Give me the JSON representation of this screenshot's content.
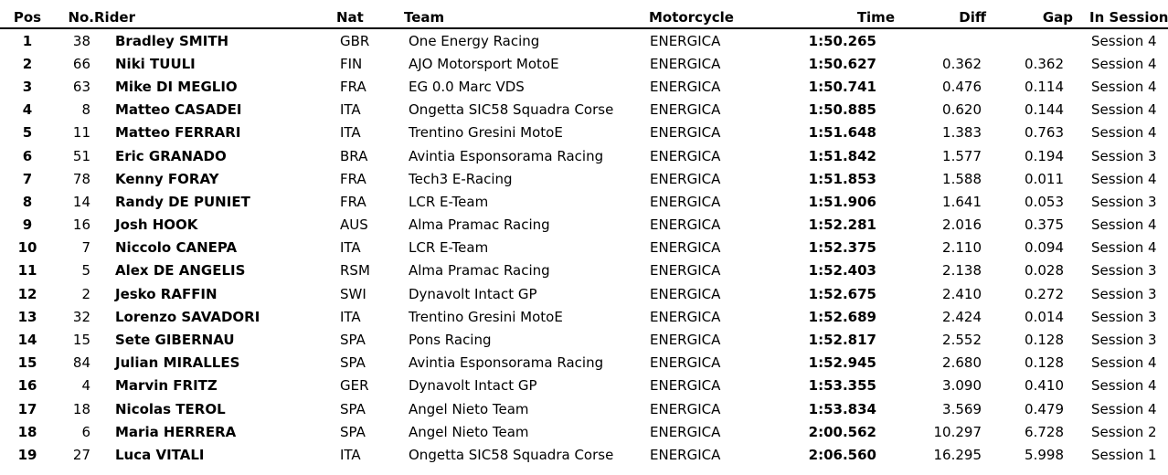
{
  "headers": {
    "pos": "Pos",
    "num": "No.",
    "rider": "Rider",
    "nat": "Nat",
    "team": "Team",
    "motorcycle": "Motorcycle",
    "time": "Time",
    "diff": "Diff",
    "gap": "Gap",
    "session": "In Session"
  },
  "rows": [
    {
      "pos": "1",
      "num": "38",
      "rider": "Bradley SMITH",
      "nat": "GBR",
      "team": "One Energy Racing",
      "motorcycle": "ENERGICA",
      "time": "1:50.265",
      "diff": "",
      "gap": "",
      "session": "Session 4"
    },
    {
      "pos": "2",
      "num": "66",
      "rider": "Niki TUULI",
      "nat": "FIN",
      "team": "AJO Motorsport MotoE",
      "motorcycle": "ENERGICA",
      "time": "1:50.627",
      "diff": "0.362",
      "gap": "0.362",
      "session": "Session 4"
    },
    {
      "pos": "3",
      "num": "63",
      "rider": "Mike DI MEGLIO",
      "nat": "FRA",
      "team": "EG 0.0 Marc VDS",
      "motorcycle": "ENERGICA",
      "time": "1:50.741",
      "diff": "0.476",
      "gap": "0.114",
      "session": "Session 4"
    },
    {
      "pos": "4",
      "num": "8",
      "rider": "Matteo CASADEI",
      "nat": "ITA",
      "team": "Ongetta SIC58 Squadra Corse",
      "motorcycle": "ENERGICA",
      "time": "1:50.885",
      "diff": "0.620",
      "gap": "0.144",
      "session": "Session 4"
    },
    {
      "pos": "5",
      "num": "11",
      "rider": "Matteo FERRARI",
      "nat": "ITA",
      "team": "Trentino Gresini MotoE",
      "motorcycle": "ENERGICA",
      "time": "1:51.648",
      "diff": "1.383",
      "gap": "0.763",
      "session": "Session 4"
    },
    {
      "pos": "6",
      "num": "51",
      "rider": "Eric GRANADO",
      "nat": "BRA",
      "team": "Avintia Esponsorama Racing",
      "motorcycle": "ENERGICA",
      "time": "1:51.842",
      "diff": "1.577",
      "gap": "0.194",
      "session": "Session 3"
    },
    {
      "pos": "7",
      "num": "78",
      "rider": "Kenny FORAY",
      "nat": "FRA",
      "team": "Tech3 E-Racing",
      "motorcycle": "ENERGICA",
      "time": "1:51.853",
      "diff": "1.588",
      "gap": "0.011",
      "session": "Session 4"
    },
    {
      "pos": "8",
      "num": "14",
      "rider": "Randy DE PUNIET",
      "nat": "FRA",
      "team": "LCR E-Team",
      "motorcycle": "ENERGICA",
      "time": "1:51.906",
      "diff": "1.641",
      "gap": "0.053",
      "session": "Session 3"
    },
    {
      "pos": "9",
      "num": "16",
      "rider": "Josh HOOK",
      "nat": "AUS",
      "team": "Alma Pramac Racing",
      "motorcycle": "ENERGICA",
      "time": "1:52.281",
      "diff": "2.016",
      "gap": "0.375",
      "session": "Session 4"
    },
    {
      "pos": "10",
      "num": "7",
      "rider": "Niccolo CANEPA",
      "nat": "ITA",
      "team": "LCR E-Team",
      "motorcycle": "ENERGICA",
      "time": "1:52.375",
      "diff": "2.110",
      "gap": "0.094",
      "session": "Session 4"
    },
    {
      "pos": "11",
      "num": "5",
      "rider": "Alex DE ANGELIS",
      "nat": "RSM",
      "team": "Alma Pramac Racing",
      "motorcycle": "ENERGICA",
      "time": "1:52.403",
      "diff": "2.138",
      "gap": "0.028",
      "session": "Session 3"
    },
    {
      "pos": "12",
      "num": "2",
      "rider": "Jesko RAFFIN",
      "nat": "SWI",
      "team": "Dynavolt Intact GP",
      "motorcycle": "ENERGICA",
      "time": "1:52.675",
      "diff": "2.410",
      "gap": "0.272",
      "session": "Session 3"
    },
    {
      "pos": "13",
      "num": "32",
      "rider": "Lorenzo SAVADORI",
      "nat": "ITA",
      "team": "Trentino Gresini MotoE",
      "motorcycle": "ENERGICA",
      "time": "1:52.689",
      "diff": "2.424",
      "gap": "0.014",
      "session": "Session 3"
    },
    {
      "pos": "14",
      "num": "15",
      "rider": "Sete GIBERNAU",
      "nat": "SPA",
      "team": "Pons Racing",
      "motorcycle": "ENERGICA",
      "time": "1:52.817",
      "diff": "2.552",
      "gap": "0.128",
      "session": "Session 3"
    },
    {
      "pos": "15",
      "num": "84",
      "rider": "Julian MIRALLES",
      "nat": "SPA",
      "team": "Avintia Esponsorama Racing",
      "motorcycle": "ENERGICA",
      "time": "1:52.945",
      "diff": "2.680",
      "gap": "0.128",
      "session": "Session 4"
    },
    {
      "pos": "16",
      "num": "4",
      "rider": "Marvin FRITZ",
      "nat": "GER",
      "team": "Dynavolt Intact GP",
      "motorcycle": "ENERGICA",
      "time": "1:53.355",
      "diff": "3.090",
      "gap": "0.410",
      "session": "Session 4"
    },
    {
      "pos": "17",
      "num": "18",
      "rider": "Nicolas TEROL",
      "nat": "SPA",
      "team": "Angel Nieto Team",
      "motorcycle": "ENERGICA",
      "time": "1:53.834",
      "diff": "3.569",
      "gap": "0.479",
      "session": "Session 4"
    },
    {
      "pos": "18",
      "num": "6",
      "rider": "Maria HERRERA",
      "nat": "SPA",
      "team": "Angel Nieto Team",
      "motorcycle": "ENERGICA",
      "time": "2:00.562",
      "diff": "10.297",
      "gap": "6.728",
      "session": "Session 2"
    },
    {
      "pos": "19",
      "num": "27",
      "rider": "Luca VITALI",
      "nat": "ITA",
      "team": "Ongetta SIC58 Squadra Corse",
      "motorcycle": "ENERGICA",
      "time": "2:06.560",
      "diff": "16.295",
      "gap": "5.998",
      "session": "Session 1"
    }
  ]
}
